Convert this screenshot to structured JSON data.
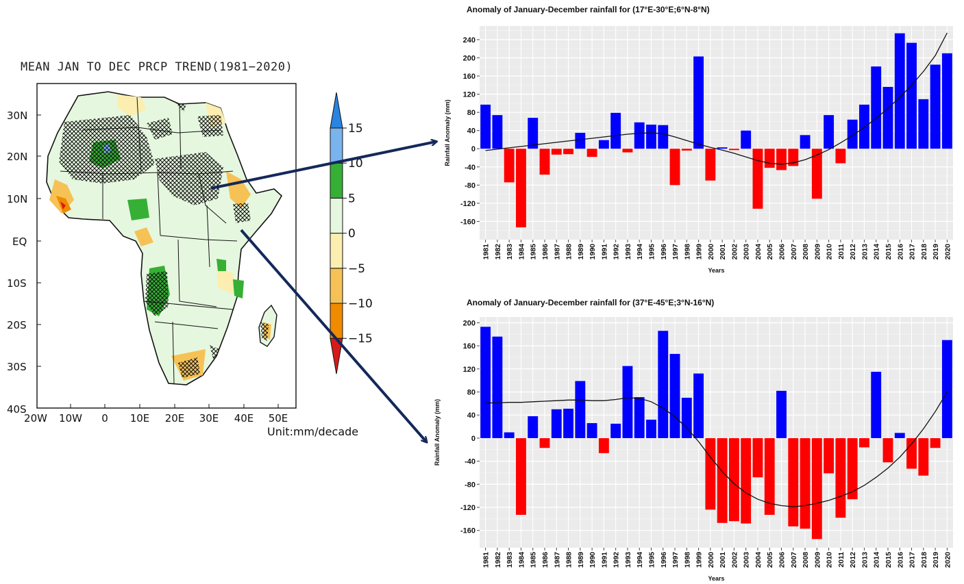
{
  "map": {
    "title": "MEAN JAN TO DEC PRCP TREND(1981−2020)",
    "lat_labels": [
      "30N",
      "20N",
      "10N",
      "EQ",
      "10S",
      "20S",
      "30S",
      "40S"
    ],
    "lon_labels": [
      "20W",
      "10W",
      "0",
      "10E",
      "20E",
      "30E",
      "40E",
      "50E"
    ],
    "colorbar": {
      "labels": [
        "15",
        "10",
        "5",
        "0",
        "−5",
        "−10",
        "−15"
      ],
      "colors": [
        "#d61b1b",
        "#f08a00",
        "#f6c256",
        "#fbeeb0",
        "#e6f7df",
        "#35b035",
        "#7ab4ef",
        "#2a84e0"
      ]
    },
    "unit": "Unit:mm/decade",
    "land_color": "#e6f7df"
  },
  "chart_data": [
    {
      "type": "bar",
      "title": "Anomaly of January-December rainfall for (17°E-30°E;6°N-8°N)",
      "xlabel": "Years",
      "ylabel": "Rainfall Anomaly (mm)",
      "categories": [
        "1981",
        "1982",
        "1983",
        "1984",
        "1985",
        "1986",
        "1987",
        "1988",
        "1989",
        "1990",
        "1991",
        "1992",
        "1993",
        "1994",
        "1995",
        "1996",
        "1997",
        "1998",
        "1999",
        "2000",
        "2001",
        "2002",
        "2003",
        "2004",
        "2005",
        "2006",
        "2007",
        "2008",
        "2009",
        "2010",
        "2011",
        "2012",
        "2013",
        "2014",
        "2015",
        "2016",
        "2017",
        "2018",
        "2019",
        "2020"
      ],
      "values": [
        97,
        74,
        -74,
        -173,
        68,
        -57,
        -13,
        -12,
        35,
        -18,
        19,
        79,
        -8,
        58,
        53,
        52,
        -80,
        -4,
        203,
        -70,
        3,
        -3,
        40,
        -132,
        -42,
        -47,
        -38,
        30,
        -110,
        74,
        -32,
        64,
        97,
        181,
        136,
        254,
        233,
        109,
        185,
        210
      ],
      "trend": [
        -4,
        -1,
        2,
        5,
        8,
        11,
        14,
        17,
        20,
        23,
        26,
        29,
        32,
        34,
        35,
        33,
        26,
        18,
        10,
        3,
        -3,
        -10,
        -18,
        -26,
        -32,
        -34,
        -31,
        -24,
        -14,
        -2,
        13,
        29,
        47,
        67,
        89,
        113,
        140,
        170,
        205,
        255
      ],
      "ylim": [
        -200,
        270
      ],
      "yticks": [
        -160,
        -120,
        -80,
        -40,
        0,
        40,
        80,
        120,
        160,
        200,
        240
      ],
      "positive_color": "#0000ff",
      "negative_color": "#ff0000",
      "grid": true
    },
    {
      "type": "bar",
      "title": "Anomaly of January-December rainfall for (37°E-45°E;3°N-16°N)",
      "xlabel": "Years",
      "ylabel": "Rainfall Anomaly (mm)",
      "categories": [
        "1981",
        "1982",
        "1983",
        "1984",
        "1985",
        "1986",
        "1987",
        "1988",
        "1989",
        "1990",
        "1991",
        "1992",
        "1993",
        "1994",
        "1995",
        "1996",
        "1997",
        "1998",
        "1999",
        "2000",
        "2001",
        "2002",
        "2003",
        "2004",
        "2005",
        "2006",
        "2007",
        "2008",
        "2009",
        "2010",
        "2011",
        "2012",
        "2013",
        "2014",
        "2015",
        "2016",
        "2017",
        "2018",
        "2019",
        "2020"
      ],
      "values": [
        193,
        176,
        10,
        -133,
        38,
        -17,
        50,
        51,
        99,
        26,
        -26,
        25,
        125,
        71,
        32,
        186,
        146,
        70,
        112,
        -124,
        -147,
        -144,
        -148,
        -68,
        -133,
        82,
        -153,
        -157,
        -175,
        -61,
        -138,
        -106,
        -16,
        115,
        -42,
        9,
        -53,
        -65,
        -17,
        170
      ],
      "trend": [
        61,
        61,
        62,
        62,
        63,
        64,
        65,
        66,
        66,
        65,
        65,
        67,
        70,
        69,
        63,
        52,
        37,
        18,
        -6,
        -33,
        -58,
        -79,
        -95,
        -106,
        -113,
        -117,
        -119,
        -117,
        -113,
        -108,
        -101,
        -93,
        -82,
        -68,
        -52,
        -33,
        -10,
        16,
        46,
        80
      ],
      "ylim": [
        -190,
        210
      ],
      "yticks": [
        -160,
        -120,
        -80,
        -40,
        0,
        40,
        80,
        120,
        160,
        200
      ],
      "positive_color": "#0000ff",
      "negative_color": "#ff0000",
      "grid": true
    }
  ]
}
